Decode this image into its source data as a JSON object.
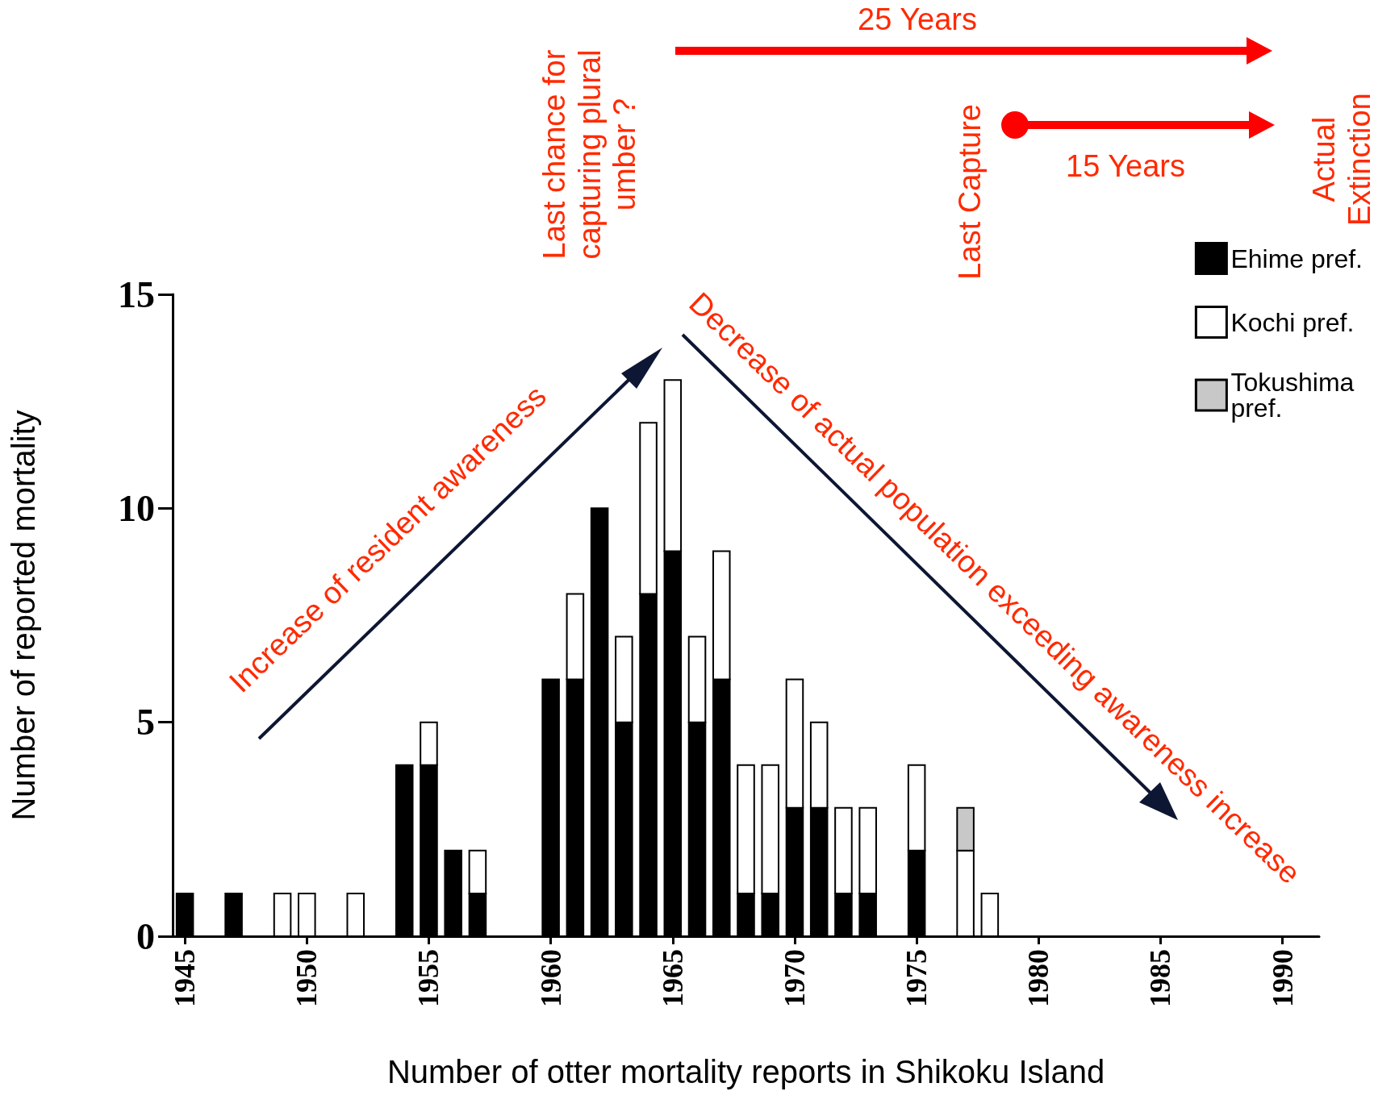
{
  "chart_data": {
    "type": "bar",
    "stacked": true,
    "xlabel": "Number of otter mortality reports in Shikoku Island",
    "ylabel": "Number of reported mortality",
    "x": [
      1945,
      1947,
      1949,
      1950,
      1952,
      1954,
      1955,
      1956,
      1957,
      1960,
      1961,
      1962,
      1963,
      1964,
      1965,
      1966,
      1967,
      1968,
      1969,
      1970,
      1971,
      1972,
      1973,
      1975,
      1977,
      1978
    ],
    "series": [
      {
        "name": "Ehime pref.",
        "color": "#000000",
        "values": [
          1,
          1,
          null,
          null,
          null,
          4,
          4,
          2,
          1,
          6,
          6,
          10,
          5,
          8,
          9,
          5,
          6,
          1,
          1,
          3,
          3,
          1,
          1,
          2,
          null,
          null
        ]
      },
      {
        "name": "Kochi pref.",
        "color": "#ffffff",
        "values": [
          null,
          null,
          1,
          1,
          1,
          null,
          1,
          null,
          1,
          null,
          2,
          null,
          2,
          4,
          4,
          2,
          3,
          3,
          3,
          3,
          2,
          2,
          2,
          2,
          2,
          1
        ]
      },
      {
        "name": "Tokushima pref.",
        "color": "#c8c8c8",
        "values": [
          null,
          null,
          null,
          null,
          null,
          null,
          null,
          null,
          null,
          null,
          null,
          null,
          null,
          null,
          null,
          null,
          null,
          null,
          null,
          null,
          null,
          null,
          null,
          null,
          1,
          null
        ]
      }
    ],
    "xlim": [
      1944.5,
      1991.5
    ],
    "xticks": [
      1945,
      1950,
      1955,
      1960,
      1965,
      1970,
      1975,
      1980,
      1985,
      1990
    ],
    "ylim": [
      0,
      15
    ],
    "yticks": [
      0,
      5,
      10,
      15
    ],
    "grid": false,
    "legend": "top right",
    "annotations": [
      "25 Years",
      "15 Years",
      "Last chance for capturing plural umber ?",
      "Last Capture",
      "Actual Extinction",
      "Increase of resident awareness",
      "Decrease of actual population exceeding awareness increase"
    ]
  }
}
